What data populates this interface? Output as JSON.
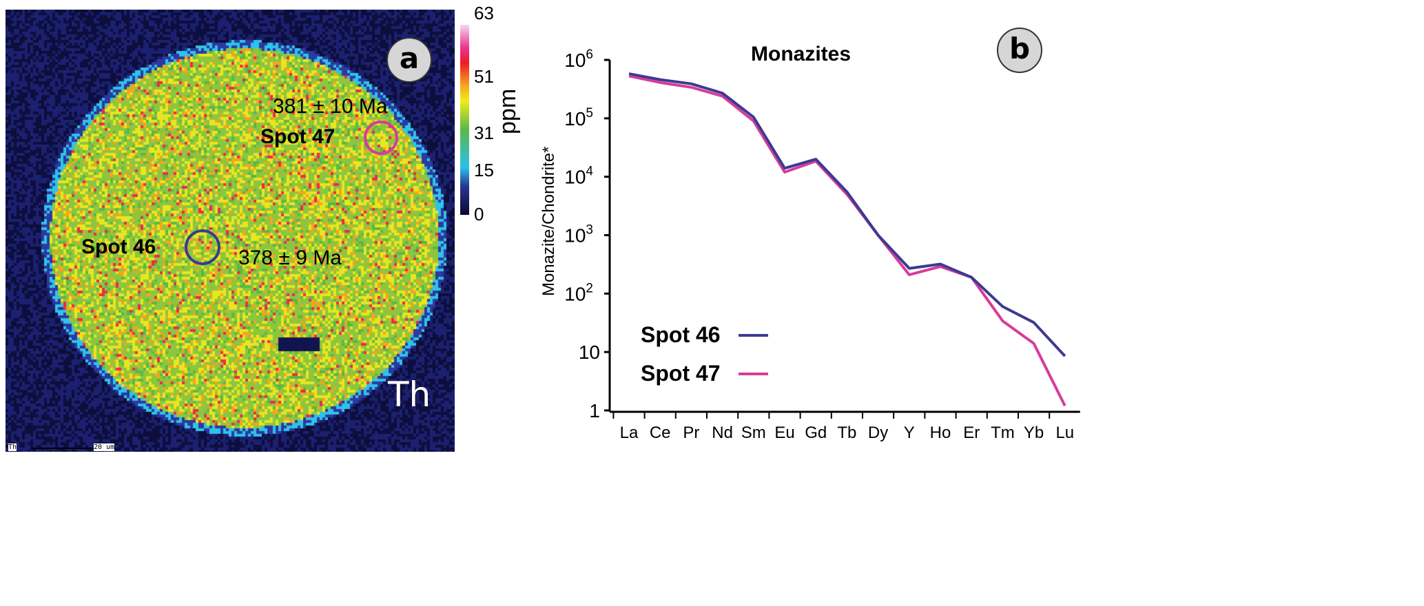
{
  "panel_a": {
    "badge": "a",
    "element_label": "Th",
    "scale_bar_left": "Th",
    "scale_bar_label": "20 um",
    "spot47_label": "Spot 47",
    "spot47_age": "381 ± 10 Ma",
    "spot46_label": "Spot 46",
    "spot46_age": "378 ± 9 Ma",
    "colorbar": {
      "unit": "ppm",
      "ticks": [
        "63",
        "51",
        "31",
        "15",
        "0"
      ]
    },
    "colors": {
      "spot46": "#3b3a93",
      "spot47": "#d63c9a"
    }
  },
  "chart_data": {
    "type": "line",
    "title": "Monazites",
    "badge": "b",
    "xlabel": "",
    "ylabel": "Monazite/Chondrite*",
    "yscale": "log",
    "ylim": [
      1,
      1000000
    ],
    "ytick_labels": [
      "1",
      "10",
      "10^2",
      "10^3",
      "10^4",
      "10^5",
      "10^6"
    ],
    "categories": [
      "La",
      "Ce",
      "Pr",
      "Nd",
      "Sm",
      "Eu",
      "Gd",
      "Tb",
      "Dy",
      "Y",
      "Ho",
      "Er",
      "Tm",
      "Yb",
      "Lu"
    ],
    "series": [
      {
        "name": "Spot 46",
        "color": "#3b3a93",
        "values": [
          580000,
          460000,
          390000,
          270000,
          105000,
          14000,
          20000,
          5500,
          1000,
          270,
          320,
          190,
          60,
          32,
          8.5
        ]
      },
      {
        "name": "Spot 47",
        "color": "#d63c9a",
        "values": [
          530000,
          410000,
          340000,
          240000,
          90000,
          12000,
          18500,
          5000,
          1000,
          210,
          290,
          190,
          34,
          14,
          1.2
        ]
      }
    ],
    "legend_position": "bottom-left"
  }
}
